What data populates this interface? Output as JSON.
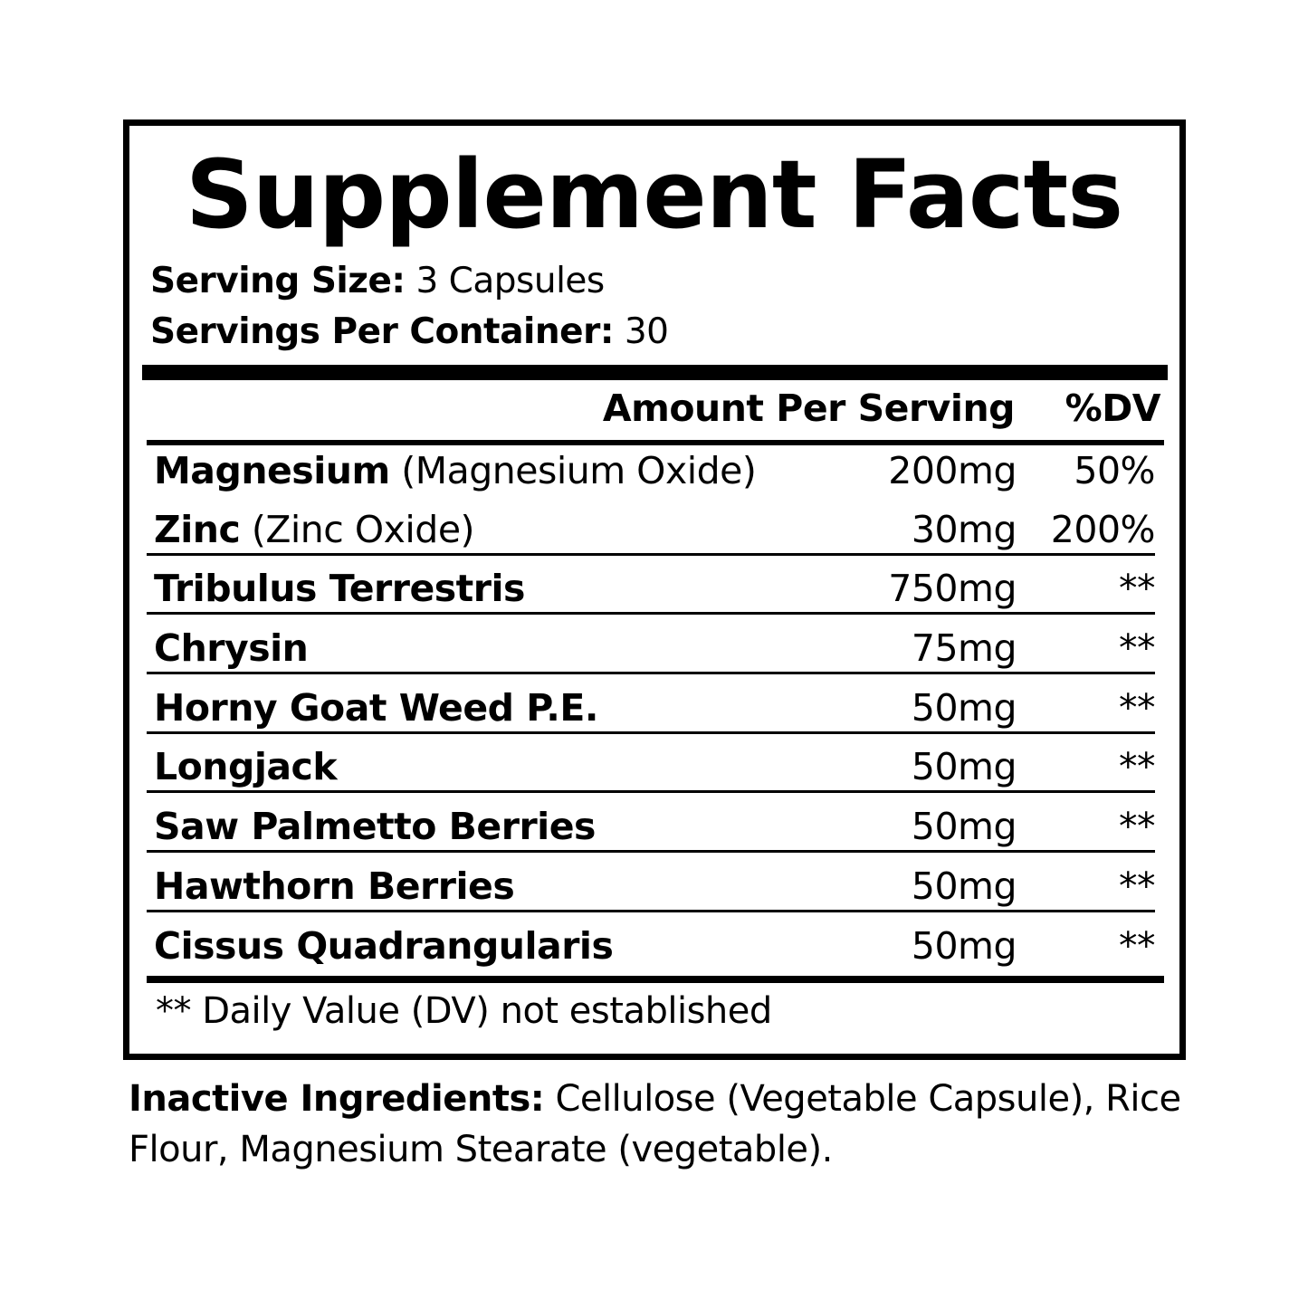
{
  "title": "Supplement Facts",
  "serving_size": {
    "label": "Serving Size:",
    "value": "3 Capsules"
  },
  "servings_per_container": {
    "label": "Servings Per Container:",
    "value": "30"
  },
  "columns": {
    "amount": "Amount Per Serving",
    "dv": "%DV"
  },
  "ingredients": [
    {
      "name": "Magnesium",
      "source": "(Magnesium Oxide)",
      "amount": "200mg",
      "dv": "50%"
    },
    {
      "name": "Zinc",
      "source": "(Zinc Oxide)",
      "amount": "30mg",
      "dv": "200%"
    },
    {
      "name": "Tribulus Terrestris",
      "source": "",
      "amount": "750mg",
      "dv": "**"
    },
    {
      "name": "Chrysin",
      "source": "",
      "amount": "75mg",
      "dv": "**"
    },
    {
      "name": "Horny Goat Weed P.E.",
      "source": "",
      "amount": "50mg",
      "dv": "**"
    },
    {
      "name": "Longjack",
      "source": "",
      "amount": "50mg",
      "dv": "**"
    },
    {
      "name": "Saw Palmetto Berries",
      "source": "",
      "amount": "50mg",
      "dv": "**"
    },
    {
      "name": "Hawthorn Berries",
      "source": "",
      "amount": "50mg",
      "dv": "**"
    },
    {
      "name": "Cissus Quadrangularis",
      "source": "",
      "amount": "50mg",
      "dv": "**"
    }
  ],
  "footnote": "** Daily Value (DV) not established",
  "inactive": {
    "label": "Inactive Ingredients:",
    "text": "Cellulose (Vegetable Capsule), Rice Flour, Magnesium Stearate (vegetable)."
  }
}
